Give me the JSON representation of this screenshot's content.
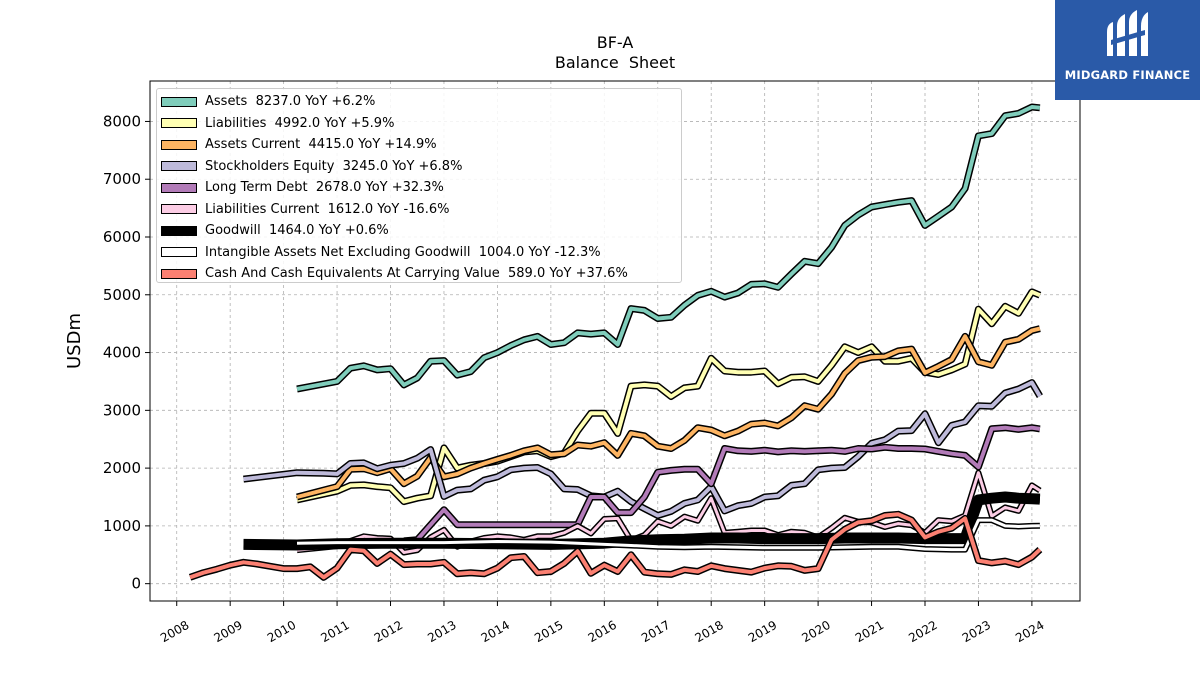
{
  "brand": {
    "name": "MIDGARD FINANCE"
  },
  "chart_data": {
    "type": "line",
    "title": "BF-A",
    "subtitle": "Balance  Sheet",
    "ylabel": "USDm",
    "xlabel": "",
    "xlim": [
      2007.5,
      2024.9
    ],
    "ylim": [
      -300,
      8700
    ],
    "yticks": [
      0,
      1000,
      2000,
      3000,
      4000,
      5000,
      6000,
      7000,
      8000
    ],
    "xticks": [
      2008,
      2009,
      2010,
      2011,
      2012,
      2013,
      2014,
      2015,
      2016,
      2017,
      2018,
      2019,
      2020,
      2021,
      2022,
      2023,
      2024
    ],
    "grid": true,
    "legend_position": "top-left",
    "series": [
      {
        "name": "Assets  8237.0 YoY +6.2%",
        "color": "#7fcdbb",
        "width": 4,
        "x": [
          2010.25,
          2011.0,
          2011.25,
          2011.5,
          2011.75,
          2012.0,
          2012.25,
          2012.5,
          2012.75,
          2013.0,
          2013.25,
          2013.5,
          2013.75,
          2014.0,
          2014.25,
          2014.5,
          2014.75,
          2015.0,
          2015.25,
          2015.5,
          2015.75,
          2016.0,
          2016.25,
          2016.5,
          2016.75,
          2017.0,
          2017.25,
          2017.5,
          2017.75,
          2018.0,
          2018.25,
          2018.5,
          2018.75,
          2019.0,
          2019.25,
          2019.5,
          2019.75,
          2020.0,
          2020.25,
          2020.5,
          2020.75,
          2021.0,
          2021.25,
          2021.5,
          2021.75,
          2022.0,
          2022.25,
          2022.5,
          2022.75,
          2023.0,
          2023.25,
          2023.5,
          2023.75,
          2024.0,
          2024.15
        ],
        "y": [
          3370,
          3500,
          3730,
          3770,
          3700,
          3720,
          3440,
          3560,
          3850,
          3860,
          3610,
          3670,
          3910,
          4000,
          4120,
          4220,
          4280,
          4140,
          4170,
          4340,
          4320,
          4340,
          4140,
          4760,
          4730,
          4590,
          4610,
          4820,
          4990,
          5060,
          4960,
          5030,
          5180,
          5190,
          5130,
          5360,
          5580,
          5540,
          5820,
          6200,
          6380,
          6520,
          6560,
          6600,
          6630,
          6200,
          6360,
          6520,
          6840,
          7750,
          7790,
          8100,
          8140,
          8250,
          8237
        ]
      },
      {
        "name": "Liabilities  4992.0 YoY +5.9%",
        "color": "#ffffb3",
        "width": 4,
        "x": [
          2010.25,
          2011.0,
          2011.25,
          2011.5,
          2011.75,
          2012.0,
          2012.25,
          2012.5,
          2012.75,
          2013.0,
          2013.25,
          2013.5,
          2013.75,
          2014.0,
          2014.25,
          2014.5,
          2014.75,
          2015.0,
          2015.25,
          2015.5,
          2015.75,
          2016.0,
          2016.25,
          2016.5,
          2016.75,
          2017.0,
          2017.25,
          2017.5,
          2017.75,
          2018.0,
          2018.25,
          2018.5,
          2018.75,
          2019.0,
          2019.25,
          2019.5,
          2019.75,
          2020.0,
          2020.25,
          2020.5,
          2020.75,
          2021.0,
          2021.25,
          2021.5,
          2021.75,
          2022.0,
          2022.25,
          2022.5,
          2022.75,
          2023.0,
          2023.25,
          2023.5,
          2023.75,
          2024.0,
          2024.15
        ],
        "y": [
          1450,
          1600,
          1700,
          1710,
          1680,
          1660,
          1420,
          1480,
          1520,
          2350,
          2000,
          2050,
          2080,
          2120,
          2200,
          2280,
          2300,
          2200,
          2260,
          2640,
          2950,
          2950,
          2600,
          3420,
          3440,
          3420,
          3240,
          3390,
          3420,
          3900,
          3680,
          3660,
          3660,
          3680,
          3460,
          3570,
          3580,
          3500,
          3780,
          4100,
          4000,
          4100,
          3850,
          3850,
          3900,
          3660,
          3620,
          3700,
          3800,
          4750,
          4500,
          4800,
          4680,
          5050,
          4992
        ]
      },
      {
        "name": "Assets Current  4415.0 YoY +14.9%",
        "color": "#fdb462",
        "width": 4,
        "x": [
          2010.25,
          2011.0,
          2011.25,
          2011.5,
          2011.75,
          2012.0,
          2012.25,
          2012.5,
          2012.75,
          2013.0,
          2013.25,
          2013.5,
          2013.75,
          2014.0,
          2014.25,
          2014.5,
          2014.75,
          2015.0,
          2015.25,
          2015.5,
          2015.75,
          2016.0,
          2016.25,
          2016.5,
          2016.75,
          2017.0,
          2017.25,
          2017.5,
          2017.75,
          2018.0,
          2018.25,
          2018.5,
          2018.75,
          2019.0,
          2019.25,
          2019.5,
          2019.75,
          2020.0,
          2020.25,
          2020.5,
          2020.75,
          2021.0,
          2021.25,
          2021.5,
          2021.75,
          2022.0,
          2022.25,
          2022.5,
          2022.75,
          2023.0,
          2023.25,
          2023.5,
          2023.75,
          2024.0,
          2024.15
        ],
        "y": [
          1500,
          1680,
          1980,
          1990,
          1920,
          1990,
          1730,
          1860,
          2180,
          1850,
          1900,
          2000,
          2080,
          2150,
          2220,
          2300,
          2350,
          2230,
          2250,
          2400,
          2380,
          2440,
          2220,
          2600,
          2560,
          2380,
          2340,
          2480,
          2700,
          2660,
          2560,
          2640,
          2760,
          2780,
          2730,
          2870,
          3080,
          3020,
          3280,
          3640,
          3860,
          3920,
          3930,
          4030,
          4060,
          3650,
          3760,
          3880,
          4280,
          3840,
          3780,
          4180,
          4230,
          4380,
          4415
        ]
      },
      {
        "name": "Stockholders Equity  3245.0 YoY +6.8%",
        "color": "#bebada",
        "width": 4,
        "x": [
          2009.25,
          2010.25,
          2010.75,
          2011.0,
          2011.25,
          2011.5,
          2011.75,
          2012.0,
          2012.25,
          2012.5,
          2012.75,
          2013.0,
          2013.25,
          2013.5,
          2013.75,
          2014.0,
          2014.25,
          2014.5,
          2014.75,
          2015.0,
          2015.25,
          2015.5,
          2015.75,
          2016.0,
          2016.25,
          2016.5,
          2016.75,
          2017.0,
          2017.25,
          2017.5,
          2017.75,
          2018.0,
          2018.25,
          2018.5,
          2018.75,
          2019.0,
          2019.25,
          2019.5,
          2019.75,
          2020.0,
          2020.25,
          2020.5,
          2020.75,
          2021.0,
          2021.25,
          2021.5,
          2021.75,
          2022.0,
          2022.25,
          2022.5,
          2022.75,
          2023.0,
          2023.25,
          2023.5,
          2023.75,
          2024.0,
          2024.15
        ],
        "y": [
          1810,
          1920,
          1910,
          1900,
          2080,
          2090,
          1990,
          2050,
          2080,
          2170,
          2320,
          1510,
          1620,
          1640,
          1790,
          1850,
          1970,
          2000,
          2010,
          1900,
          1640,
          1630,
          1520,
          1500,
          1600,
          1420,
          1300,
          1180,
          1250,
          1390,
          1450,
          1680,
          1260,
          1350,
          1390,
          1500,
          1520,
          1700,
          1730,
          1970,
          2000,
          2010,
          2200,
          2430,
          2490,
          2640,
          2650,
          2940,
          2440,
          2740,
          2800,
          3080,
          3070,
          3300,
          3370,
          3480,
          3245
        ]
      },
      {
        "name": "Long Term Debt  2678.0 YoY +32.3%",
        "color": "#b27bb8",
        "width": 4,
        "x": [
          2012.25,
          2012.5,
          2013.0,
          2013.25,
          2013.5,
          2014.0,
          2014.5,
          2015.0,
          2015.25,
          2015.5,
          2015.75,
          2016.0,
          2016.25,
          2016.5,
          2016.75,
          2017.0,
          2017.25,
          2017.5,
          2017.75,
          2018.0,
          2018.25,
          2018.5,
          2018.75,
          2019.0,
          2019.25,
          2019.5,
          2019.75,
          2020.0,
          2020.25,
          2020.5,
          2020.75,
          2021.0,
          2021.25,
          2021.5,
          2021.75,
          2022.0,
          2022.25,
          2022.5,
          2022.75,
          2023.0,
          2023.25,
          2023.5,
          2023.75,
          2024.0,
          2024.15
        ],
        "y": [
          740,
          760,
          1280,
          1020,
          1020,
          1020,
          1020,
          1020,
          1020,
          1020,
          1500,
          1500,
          1230,
          1230,
          1500,
          1930,
          1960,
          1980,
          1980,
          1730,
          2340,
          2300,
          2290,
          2310,
          2280,
          2300,
          2290,
          2300,
          2310,
          2290,
          2340,
          2330,
          2360,
          2340,
          2340,
          2330,
          2290,
          2250,
          2220,
          2020,
          2680,
          2700,
          2670,
          2700,
          2678
        ]
      },
      {
        "name": "Liabilities Current  1612.0 YoY -16.6%",
        "color": "#fccde5",
        "width": 3,
        "x": [
          2010.25,
          2011.0,
          2011.25,
          2011.5,
          2011.75,
          2012.0,
          2012.25,
          2012.5,
          2012.75,
          2013.0,
          2013.25,
          2013.5,
          2013.75,
          2014.0,
          2014.25,
          2014.5,
          2014.75,
          2015.0,
          2015.25,
          2015.5,
          2015.75,
          2016.0,
          2016.25,
          2016.5,
          2016.75,
          2017.0,
          2017.25,
          2017.5,
          2017.75,
          2018.0,
          2018.25,
          2018.5,
          2018.75,
          2019.0,
          2019.25,
          2019.5,
          2019.75,
          2020.0,
          2020.25,
          2020.5,
          2020.75,
          2021.0,
          2021.25,
          2021.5,
          2021.75,
          2022.0,
          2022.25,
          2022.5,
          2022.75,
          2023.0,
          2023.25,
          2023.5,
          2023.75,
          2024.0,
          2024.15
        ],
        "y": [
          580,
          650,
          740,
          820,
          790,
          780,
          540,
          580,
          800,
          930,
          640,
          730,
          790,
          820,
          800,
          760,
          820,
          820,
          880,
          1000,
          870,
          1120,
          1130,
          750,
          840,
          1080,
          1000,
          1160,
          1090,
          1480,
          880,
          900,
          920,
          920,
          840,
          900,
          880,
          800,
          960,
          1140,
          1070,
          1060,
          980,
          1040,
          1010,
          880,
          1100,
          1080,
          1180,
          1920,
          1170,
          1320,
          1260,
          1700,
          1612
        ]
      },
      {
        "name": "Goodwill  1464.0 YoY +0.6%",
        "color": "#000000",
        "width": 8,
        "x": [
          2009.25,
          2010.25,
          2011.0,
          2012.0,
          2013.0,
          2014.0,
          2015.0,
          2016.0,
          2016.5,
          2017.0,
          2017.5,
          2018.0,
          2018.5,
          2019.0,
          2019.5,
          2020.0,
          2020.5,
          2021.0,
          2021.5,
          2022.0,
          2022.5,
          2022.75,
          2023.0,
          2023.25,
          2023.5,
          2023.75,
          2024.0,
          2024.15
        ],
        "y": [
          680,
          670,
          690,
          700,
          700,
          690,
          680,
          700,
          740,
          760,
          770,
          790,
          790,
          780,
          780,
          780,
          790,
          790,
          790,
          780,
          780,
          780,
          1450,
          1480,
          1500,
          1480,
          1470,
          1464
        ]
      },
      {
        "name": "Intangible Assets Net Excluding Goodwill  1004.0 YoY -12.3%",
        "color": "#ffffff",
        "width": 3,
        "x": [
          2010.25,
          2011.0,
          2012.0,
          2013.0,
          2014.0,
          2015.0,
          2015.5,
          2016.0,
          2016.5,
          2017.0,
          2017.5,
          2018.0,
          2018.5,
          2019.0,
          2019.5,
          2020.0,
          2020.5,
          2021.0,
          2021.5,
          2022.0,
          2022.5,
          2022.75,
          2023.0,
          2023.25,
          2023.5,
          2023.75,
          2024.0,
          2024.15
        ],
        "y": [
          700,
          710,
          710,
          710,
          730,
          720,
          700,
          680,
          660,
          640,
          630,
          640,
          630,
          620,
          620,
          620,
          630,
          640,
          640,
          600,
          590,
          590,
          1100,
          1100,
          1000,
          990,
          1000,
          1004
        ]
      },
      {
        "name": "Cash And Cash Equivalents At Carrying Value  589.0 YoY +37.6%",
        "color": "#fb8072",
        "width": 4,
        "x": [
          2008.25,
          2008.5,
          2008.75,
          2009.0,
          2009.25,
          2009.5,
          2009.75,
          2010.0,
          2010.25,
          2010.5,
          2010.75,
          2011.0,
          2011.25,
          2011.5,
          2011.75,
          2012.0,
          2012.25,
          2012.5,
          2012.75,
          2013.0,
          2013.25,
          2013.5,
          2013.75,
          2014.0,
          2014.25,
          2014.5,
          2014.75,
          2015.0,
          2015.25,
          2015.5,
          2015.75,
          2016.0,
          2016.25,
          2016.5,
          2016.75,
          2017.0,
          2017.25,
          2017.5,
          2017.75,
          2018.0,
          2018.25,
          2018.5,
          2018.75,
          2019.0,
          2019.25,
          2019.5,
          2019.75,
          2020.0,
          2020.25,
          2020.5,
          2020.75,
          2021.0,
          2021.25,
          2021.5,
          2021.75,
          2022.0,
          2022.25,
          2022.5,
          2022.75,
          2023.0,
          2023.25,
          2023.5,
          2023.75,
          2024.0,
          2024.15
        ],
        "y": [
          110,
          190,
          250,
          320,
          370,
          340,
          300,
          260,
          260,
          290,
          110,
          270,
          590,
          570,
          350,
          510,
          330,
          340,
          340,
          370,
          170,
          190,
          170,
          270,
          450,
          470,
          190,
          210,
          350,
          560,
          180,
          320,
          210,
          500,
          200,
          170,
          160,
          240,
          210,
          310,
          260,
          230,
          200,
          270,
          310,
          300,
          230,
          260,
          760,
          940,
          1060,
          1090,
          1180,
          1200,
          1100,
          800,
          900,
          960,
          1130,
          400,
          360,
          390,
          330,
          460,
          589
        ]
      }
    ]
  }
}
